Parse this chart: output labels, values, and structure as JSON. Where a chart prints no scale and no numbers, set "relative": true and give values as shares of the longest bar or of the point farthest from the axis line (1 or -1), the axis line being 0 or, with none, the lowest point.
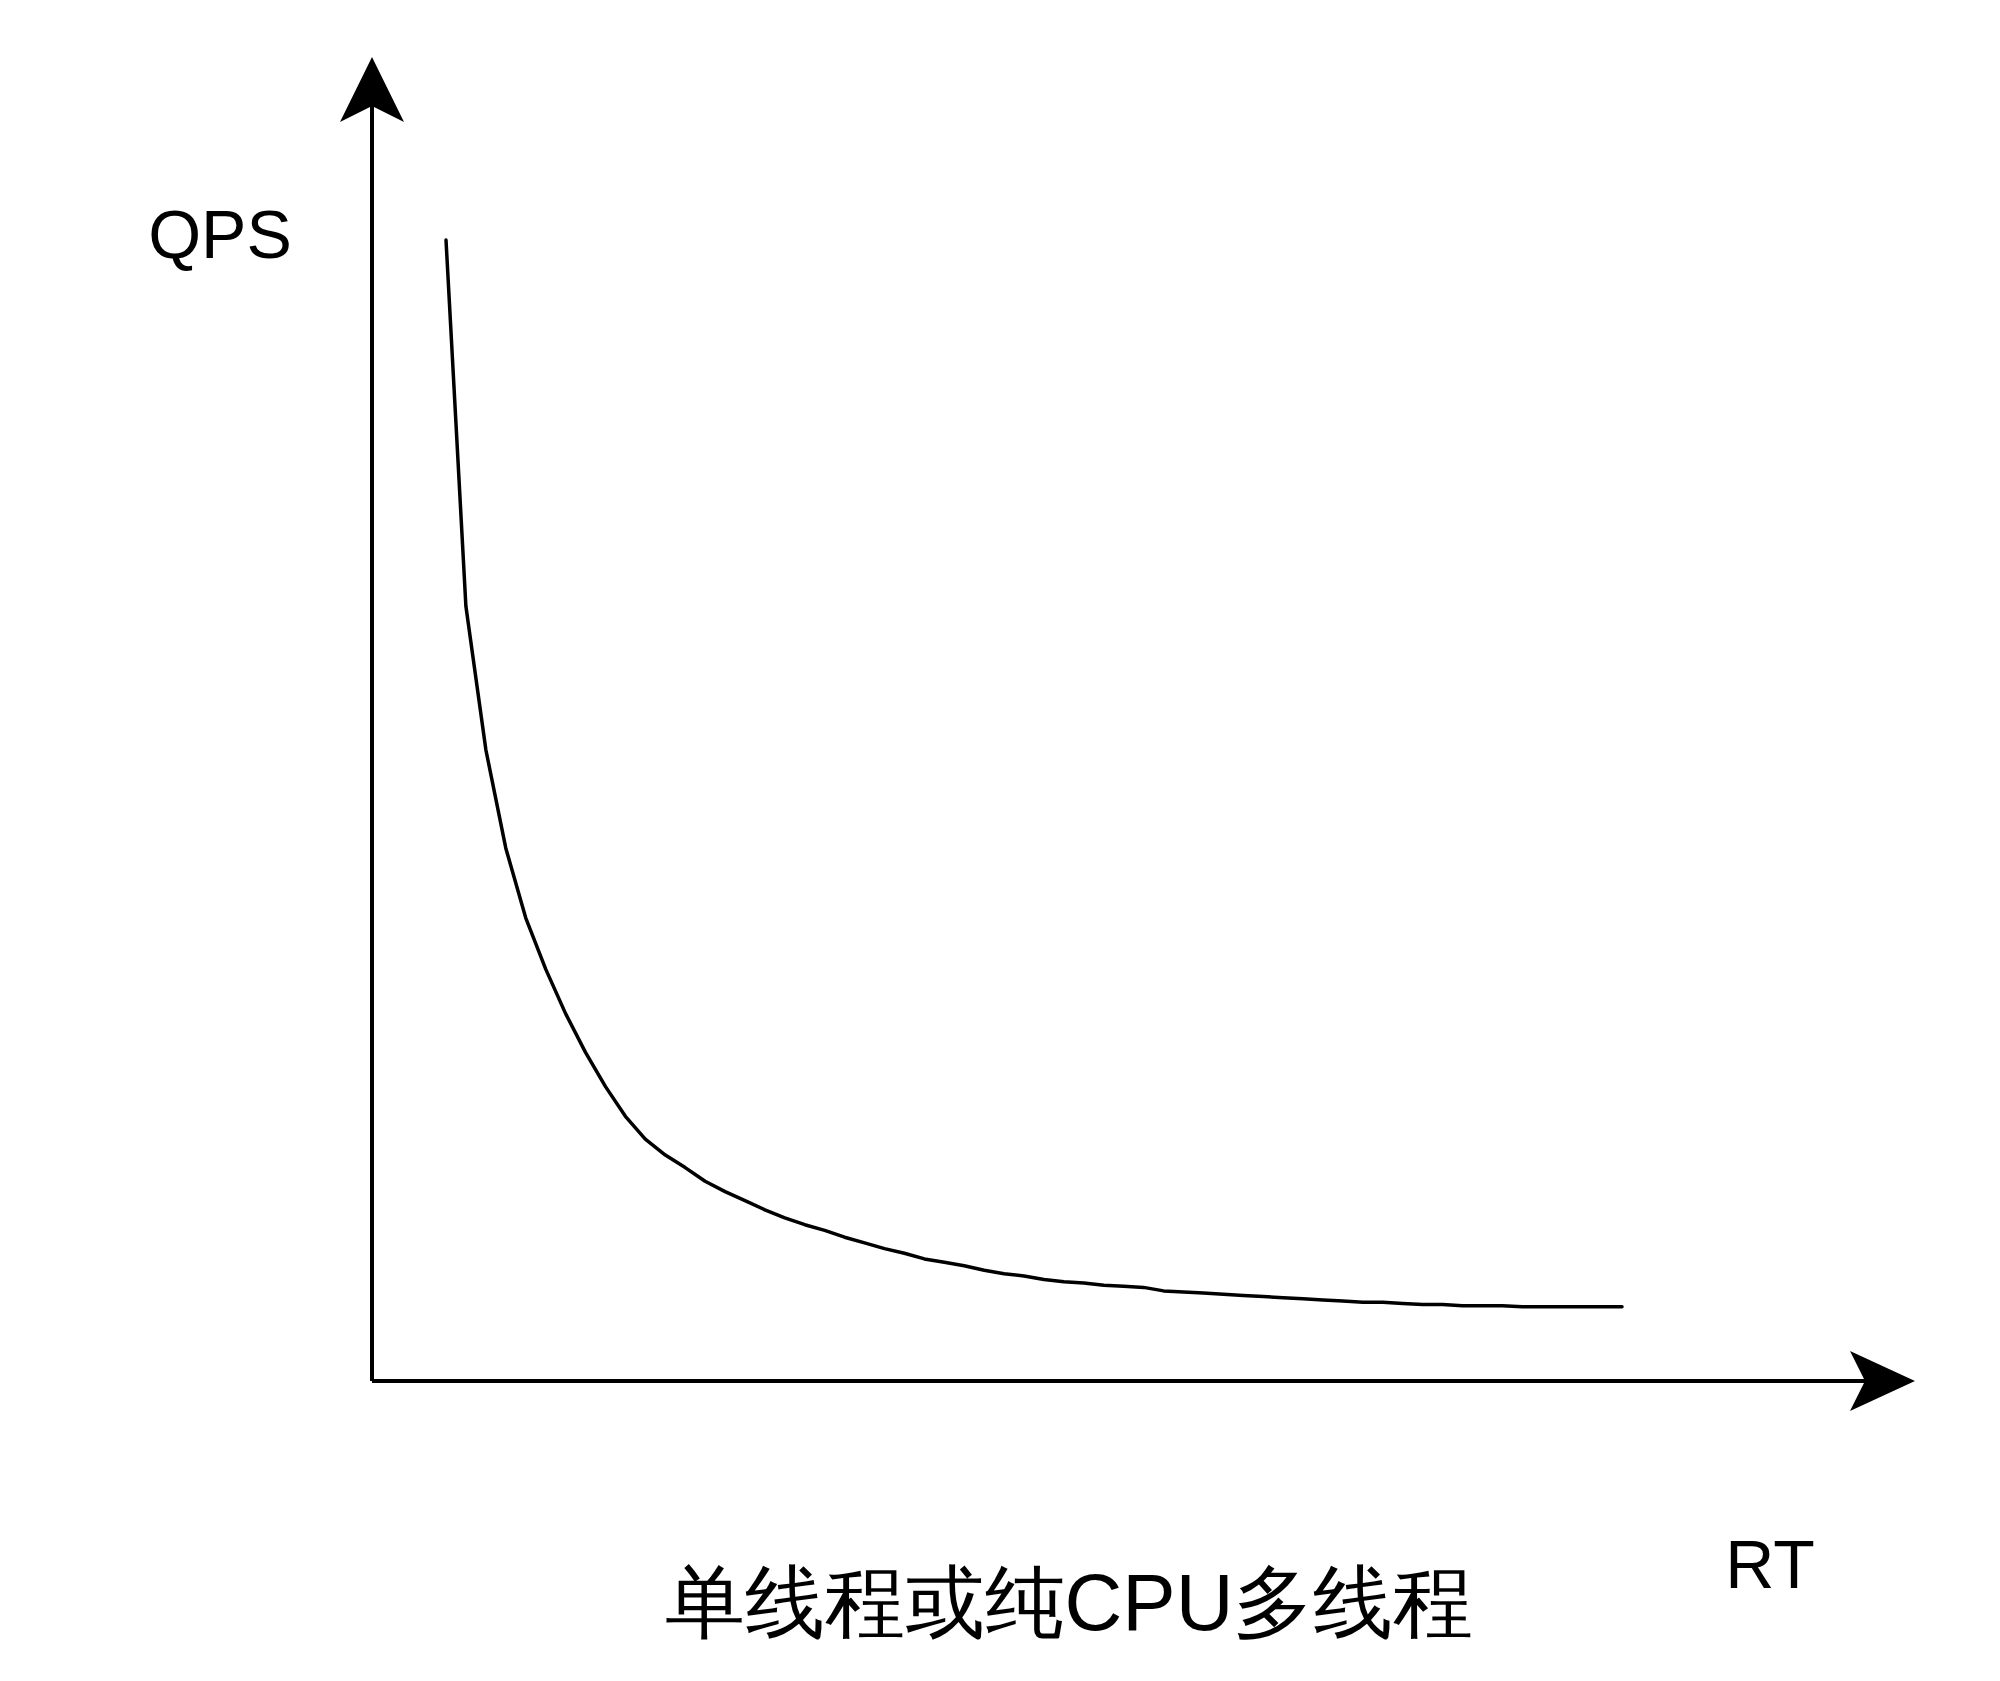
{
  "chart_data": {
    "type": "line",
    "relative": true,
    "title": "单线程或纯CPU多线程",
    "xlabel": "RT",
    "ylabel": "QPS",
    "categories": [
      null,
      null,
      null,
      null,
      null,
      null,
      null,
      null,
      null,
      null,
      null,
      null,
      null,
      null,
      null,
      null,
      null,
      null,
      null,
      null,
      null,
      null,
      null,
      null,
      null,
      null,
      null,
      null,
      null,
      null,
      null,
      null,
      null,
      null,
      null,
      null,
      null,
      null,
      null,
      null,
      null,
      null,
      null,
      null,
      null,
      null,
      null,
      null,
      null,
      null,
      null,
      null,
      null,
      null,
      null,
      null,
      null,
      null,
      null,
      null
    ],
    "series": [
      {
        "color": "#000000",
        "values": [
          1.0,
          0.679,
          0.553,
          0.467,
          0.406,
          0.361,
          0.322,
          0.288,
          0.258,
          0.232,
          0.212,
          0.198,
          0.187,
          0.175,
          0.166,
          0.158,
          0.15,
          0.143,
          0.137,
          0.132,
          0.126,
          0.121,
          0.116,
          0.112,
          0.107,
          0.104,
          0.101,
          0.097,
          0.094,
          0.092,
          0.089,
          0.087,
          0.086,
          0.084,
          0.083,
          0.082,
          0.079,
          0.078,
          0.077,
          0.076,
          0.075,
          0.074,
          0.073,
          0.072,
          0.071,
          0.07,
          0.069,
          0.069,
          0.068,
          0.067,
          0.067,
          0.066,
          0.066,
          0.066,
          0.065,
          0.065,
          0.065,
          0.065,
          0.065,
          0.065
        ]
      }
    ]
  }
}
